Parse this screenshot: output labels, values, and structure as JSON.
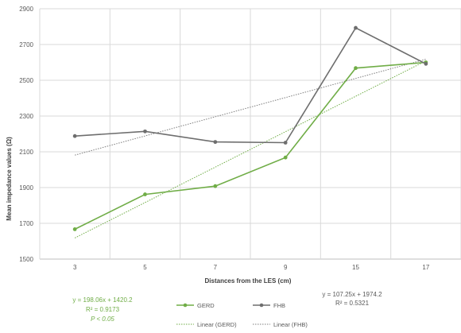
{
  "chart_data": {
    "type": "line",
    "xlabel": "Distances from the LES (cm)",
    "ylabel": "Mean impedance values (Ω)",
    "categories": [
      "3",
      "5",
      "7",
      "9",
      "15",
      "17"
    ],
    "ylim": [
      1500,
      2900
    ],
    "yticks": [
      1500,
      1700,
      1900,
      2100,
      2300,
      2500,
      2700,
      2900
    ],
    "grid": true,
    "legend_position": "bottom",
    "series": [
      {
        "name": "GERD",
        "values": [
          1667,
          1862,
          1908,
          2068,
          2568,
          2600
        ],
        "color": "#70ad47"
      },
      {
        "name": "FHB",
        "values": [
          2188,
          2214,
          2155,
          2151,
          2793,
          2592
        ],
        "color": "#6e6e6e"
      }
    ],
    "trendlines": [
      {
        "name": "Linear (GERD)",
        "slope": 198.06,
        "intercept": 1420.2,
        "color": "#70ad47"
      },
      {
        "name": "Linear (FHB)",
        "slope": 107.25,
        "intercept": 1974.2,
        "color": "#7f7f7f"
      }
    ],
    "annotations": {
      "gerd_equation": "y = 198.06x + 1420.2",
      "gerd_r2": "R² = 0.9173",
      "gerd_p": "P < 0.05",
      "fhb_equation": "y = 107.25x + 1974.2",
      "fhb_r2": "R² = 0.5321"
    }
  }
}
